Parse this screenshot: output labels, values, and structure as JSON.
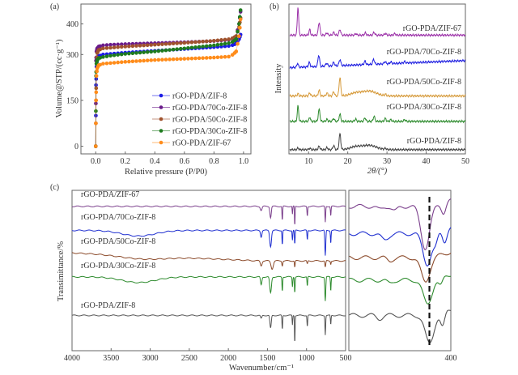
{
  "chart_data": [
    {
      "type": "scatter",
      "panel": "(a)",
      "xlabel": "Relative pressure (P/P0)",
      "xlabel_parts": [
        "Relative pressure (",
        "P",
        "/",
        "P",
        "0",
        ")"
      ],
      "ylabel": "Volume@STP/(cc·g⁻¹)",
      "xlim": [
        -0.1,
        1.05
      ],
      "ylim": [
        -25,
        465
      ],
      "xticks": [
        "0.0",
        "0.2",
        "0.4",
        "0.6",
        "0.8",
        "1.0"
      ],
      "xtick_values": [
        0,
        0.2,
        0.4,
        0.6,
        0.8,
        1.0
      ],
      "yticks": [
        "0",
        "150",
        "300",
        "400"
      ],
      "ytick_values": [
        0,
        150,
        300,
        400
      ],
      "legend": "center-right",
      "x": [
        0,
        0.002,
        0.005,
        0.01,
        0.02,
        0.05,
        0.1,
        0.2,
        0.4,
        0.6,
        0.8,
        0.9,
        0.93,
        0.95,
        0.97,
        0.98
      ],
      "series": [
        {
          "name": "rGO-PDA/ZIF-8",
          "color": "#1a1ae6",
          "values": [
            0,
            200,
            260,
            285,
            295,
            300,
            302,
            306,
            312,
            318,
            324,
            328,
            331,
            336,
            350,
            365
          ]
        },
        {
          "name": "rGO-PDA/70Co-ZIF-8",
          "color": "#6a1b8a",
          "values": [
            0,
            280,
            310,
            320,
            326,
            330,
            332,
            334,
            337,
            340,
            344,
            348,
            352,
            360,
            400,
            440
          ]
        },
        {
          "name": "rGO-PDA/50Co-ZIF-8",
          "color": "#a0522d",
          "values": [
            0,
            150,
            270,
            305,
            315,
            320,
            322,
            326,
            332,
            338,
            345,
            350,
            354,
            360,
            390,
            420
          ]
        },
        {
          "name": "rGO-PDA/30Co-ZIF-8",
          "color": "#1e7b1e",
          "values": [
            0,
            230,
            270,
            282,
            288,
            292,
            296,
            302,
            310,
            320,
            330,
            337,
            342,
            350,
            400,
            445
          ]
        },
        {
          "name": "rGO-PDA/ZIF-67",
          "color": "#ff8c1a",
          "values": [
            0,
            150,
            230,
            255,
            265,
            270,
            272,
            276,
            282,
            286,
            290,
            293,
            300,
            310,
            360,
            415
          ]
        }
      ]
    },
    {
      "type": "line",
      "panel": "(b)",
      "xlabel": "2θ/(°)",
      "ylabel": "Intensity",
      "xlim": [
        5,
        50
      ],
      "ylim": [
        0,
        5.3
      ],
      "xticks": [
        "10",
        "20",
        "30",
        "40",
        "50"
      ],
      "xtick_values": [
        10,
        20,
        30,
        40,
        50
      ],
      "series": [
        {
          "name": "rGO-PDA/ZIF-67",
          "color": "#9b30a8",
          "baseline": 4.2,
          "slope": 0,
          "peaks": [
            [
              7.3,
              1.0,
              0.25
            ],
            [
              10.3,
              0.2,
              0.25
            ],
            [
              12.7,
              0.45,
              0.3
            ],
            [
              14.7,
              0.08,
              0.3
            ],
            [
              16.4,
              0.1,
              0.3
            ],
            [
              18.0,
              0.2,
              0.3
            ],
            [
              22.1,
              0.05,
              0.3
            ],
            [
              24.5,
              0.08,
              0.3
            ],
            [
              26.7,
              0.1,
              0.3
            ],
            [
              29.6,
              0.06,
              0.3
            ],
            [
              32.0,
              0.05,
              0.3
            ]
          ]
        },
        {
          "name": "rGO-PDA/70Co-ZIF-8",
          "color": "#1c1ce0",
          "baseline": 3.05,
          "slope": 0.25,
          "peaks": [
            [
              7.2,
              0.15,
              0.25
            ],
            [
              10.2,
              0.15,
              0.3
            ],
            [
              12.6,
              0.4,
              0.3
            ],
            [
              14.6,
              0.1,
              0.35
            ],
            [
              16.4,
              0.13,
              0.3
            ],
            [
              18.0,
              0.22,
              0.3
            ],
            [
              24.4,
              0.12,
              0.3
            ],
            [
              26.6,
              0.18,
              0.3
            ],
            [
              29.5,
              0.08,
              0.3
            ],
            [
              31.0,
              0.06,
              0.3
            ],
            [
              34.5,
              0.05,
              0.3
            ]
          ]
        },
        {
          "name": "rGO-PDA/50Co-ZIF-8",
          "color": "#d69a3a",
          "baseline": 2.05,
          "slope": 0,
          "peaks": [
            [
              7.3,
              0.08,
              0.25
            ],
            [
              10.3,
              0.1,
              0.3
            ],
            [
              12.7,
              0.2,
              0.3
            ],
            [
              14.7,
              0.1,
              0.3
            ],
            [
              16.4,
              0.15,
              0.3
            ],
            [
              18.0,
              0.65,
              0.3
            ],
            [
              22.0,
              0.1,
              2.0
            ],
            [
              25.5,
              0.17,
              2.5
            ],
            [
              29.6,
              0.05,
              0.3
            ]
          ]
        },
        {
          "name": "rGO-PDA/30Co-ZIF-8",
          "color": "#2e8b2e",
          "baseline": 1.15,
          "slope": 0,
          "peaks": [
            [
              7.3,
              0.55,
              0.25
            ],
            [
              10.3,
              0.15,
              0.25
            ],
            [
              12.7,
              0.42,
              0.3
            ],
            [
              14.7,
              0.07,
              0.3
            ],
            [
              16.4,
              0.1,
              0.3
            ],
            [
              18.0,
              0.25,
              0.3
            ],
            [
              22.0,
              0.08,
              0.3
            ],
            [
              24.4,
              0.12,
              0.3
            ],
            [
              26.7,
              0.18,
              0.3
            ],
            [
              29.6,
              0.1,
              0.3
            ],
            [
              31.0,
              0.06,
              0.3
            ],
            [
              34.5,
              0.06,
              0.3
            ]
          ]
        },
        {
          "name": "rGO-PDA/ZIF-8",
          "color": "#444444",
          "baseline": 0.15,
          "slope": 0,
          "peaks": [
            [
              7.3,
              0.06,
              0.25
            ],
            [
              10.3,
              0.05,
              0.3
            ],
            [
              12.7,
              0.12,
              0.3
            ],
            [
              14.7,
              0.07,
              0.3
            ],
            [
              16.4,
              0.15,
              0.3
            ],
            [
              18.0,
              0.55,
              0.3
            ],
            [
              22.0,
              0.1,
              2.0
            ],
            [
              25.5,
              0.15,
              2.5
            ],
            [
              29.6,
              0.04,
              0.3
            ]
          ]
        }
      ]
    },
    {
      "type": "line",
      "panel": "(c)",
      "xlabel": "Wavenumber/cm⁻¹",
      "ylabel": "Transimittance/%",
      "xlim": [
        4000,
        500
      ],
      "xlim_inset": [
        500,
        400
      ],
      "ylim": [
        0,
        10
      ],
      "xticks": [
        "4000",
        "3500",
        "3000",
        "2500",
        "2000",
        "1500",
        "1000",
        "500"
      ],
      "xtick_values": [
        4000,
        3500,
        3000,
        2500,
        2000,
        1500,
        1000,
        500
      ],
      "xticks_inset": [
        "400"
      ],
      "xtick_values_inset": [
        400
      ],
      "dashed_line_at": 421,
      "series": [
        {
          "name": "rGO-PDA/ZIF-67",
          "color": "#7b3f8c",
          "baseline": 9.0,
          "broad": [],
          "dips": [
            [
              1580,
              0.25,
              15
            ],
            [
              1460,
              0.7,
              12
            ],
            [
              1310,
              0.9,
              6
            ],
            [
              1180,
              0.5,
              5
            ],
            [
              1150,
              1.3,
              5
            ],
            [
              990,
              0.6,
              6
            ],
            [
              760,
              1.0,
              6
            ],
            [
              690,
              0.6,
              6
            ]
          ],
          "inset_baseline": 9.0,
          "inset_dips": [
            [
              470,
              0.2,
              4
            ],
            [
              455,
              0.3,
              4
            ],
            [
              425,
              2.6,
              6
            ],
            [
              407,
              0.6,
              3
            ]
          ]
        },
        {
          "name": "rGO-PDA/70Co-ZIF-8",
          "color": "#2030d0",
          "baseline": 7.5,
          "broad": [
            [
              3150,
              0.35,
              300
            ]
          ],
          "dips": [
            [
              1580,
              0.4,
              12
            ],
            [
              1460,
              1.0,
              15
            ],
            [
              1310,
              0.9,
              6
            ],
            [
              1180,
              0.6,
              6
            ],
            [
              1150,
              0.9,
              6
            ],
            [
              990,
              0.6,
              6
            ],
            [
              760,
              1.6,
              8
            ],
            [
              690,
              0.8,
              6
            ]
          ],
          "inset_baseline": 7.3,
          "inset_dips": [
            [
              465,
              0.4,
              5
            ],
            [
              423,
              1.9,
              6
            ],
            [
              415,
              0.6,
              3
            ],
            [
              406,
              0.7,
              3
            ]
          ]
        },
        {
          "name": "rGO-PDA/50Co-ZIF-8",
          "color": "#8b4a2a",
          "baseline": 6.1,
          "broad": [
            [
              3100,
              0.2,
              400
            ]
          ],
          "slope": 0.5,
          "dips": [
            [
              1580,
              0.3,
              15
            ],
            [
              1440,
              0.5,
              20
            ],
            [
              1310,
              0.3,
              8
            ],
            [
              1150,
              0.4,
              6
            ],
            [
              990,
              0.2,
              8
            ],
            [
              760,
              0.4,
              8
            ],
            [
              690,
              0.2,
              6
            ]
          ],
          "inset_baseline": 5.8,
          "inset_dips": [
            [
              460,
              0.2,
              4
            ],
            [
              425,
              1.5,
              6
            ]
          ]
        },
        {
          "name": "rGO-PDA/30Co-ZIF-8",
          "color": "#2e8b2e",
          "baseline": 4.6,
          "broad": [
            [
              3150,
              0.35,
              300
            ]
          ],
          "dips": [
            [
              1580,
              0.5,
              12
            ],
            [
              1460,
              1.0,
              15
            ],
            [
              1310,
              0.9,
              6
            ],
            [
              1180,
              0.6,
              6
            ],
            [
              1150,
              1.0,
              6
            ],
            [
              990,
              0.6,
              6
            ],
            [
              760,
              1.5,
              8
            ],
            [
              690,
              0.9,
              6
            ]
          ],
          "inset_baseline": 4.4,
          "inset_dips": [
            [
              460,
              0.2,
              4
            ],
            [
              423,
              1.5,
              6
            ],
            [
              410,
              0.5,
              3
            ]
          ]
        },
        {
          "name": "rGO-PDA/ZIF-8",
          "color": "#555555",
          "baseline": 2.2,
          "broad": [],
          "dips": [
            [
              1580,
              0.2,
              12
            ],
            [
              1460,
              0.8,
              12
            ],
            [
              1310,
              0.9,
              6
            ],
            [
              1180,
              0.6,
              5
            ],
            [
              1150,
              1.8,
              5
            ],
            [
              990,
              0.7,
              6
            ],
            [
              760,
              1.2,
              6
            ],
            [
              690,
              0.6,
              6
            ]
          ],
          "inset_baseline": 2.2,
          "inset_dips": [
            [
              470,
              0.2,
              4
            ],
            [
              421,
              1.75,
              6
            ],
            [
              408,
              0.9,
              3
            ]
          ]
        }
      ]
    }
  ]
}
